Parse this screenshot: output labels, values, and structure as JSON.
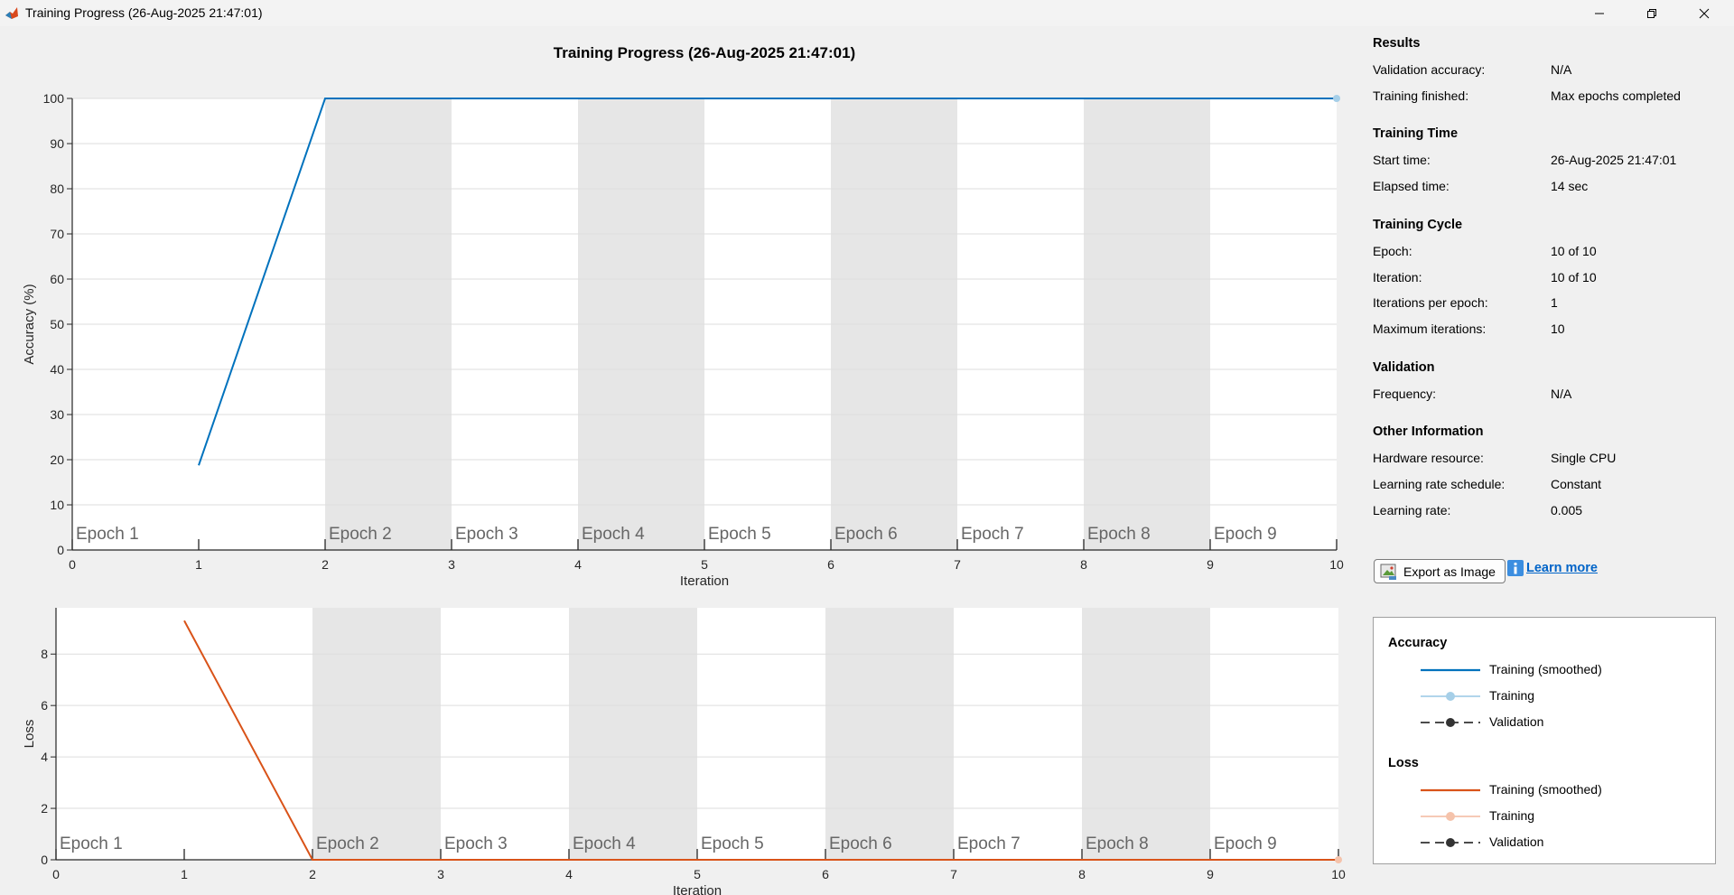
{
  "window": {
    "title": "Training Progress (26-Aug-2025 21:47:01)",
    "controls": [
      "minimize-icon",
      "restore-icon",
      "close-icon"
    ]
  },
  "figure_title": "Training Progress (26-Aug-2025 21:47:01)",
  "chart_data": [
    {
      "type": "line",
      "title": "",
      "xlabel": "Iteration",
      "ylabel": "Accuracy (%)",
      "xlim": [
        0,
        10
      ],
      "ylim": [
        0,
        100
      ],
      "xticks": [
        0,
        1,
        2,
        3,
        4,
        5,
        6,
        7,
        8,
        9,
        10
      ],
      "yticks": [
        0,
        10,
        20,
        30,
        40,
        50,
        60,
        70,
        80,
        90,
        100
      ],
      "grid": true,
      "epoch_labels": [
        "Epoch 1",
        "Epoch 2",
        "Epoch 3",
        "Epoch 4",
        "Epoch 5",
        "Epoch 6",
        "Epoch 7",
        "Epoch 8",
        "Epoch 9"
      ],
      "series": [
        {
          "name": "Training (smoothed)",
          "color": "#0072bd",
          "x": [
            1,
            2,
            3,
            4,
            5,
            6,
            7,
            8,
            9,
            10
          ],
          "y": [
            18.75,
            100,
            100,
            100,
            100,
            100,
            100,
            100,
            100,
            100
          ]
        },
        {
          "name": "Training",
          "color": "#a6cfe8",
          "x": [
            10
          ],
          "y": [
            100
          ]
        }
      ]
    },
    {
      "type": "line",
      "title": "",
      "xlabel": "Iteration",
      "ylabel": "Loss",
      "xlim": [
        0,
        10
      ],
      "ylim": [
        0,
        9.8
      ],
      "xticks": [
        0,
        1,
        2,
        3,
        4,
        5,
        6,
        7,
        8,
        9,
        10
      ],
      "yticks": [
        0,
        2,
        4,
        6,
        8
      ],
      "grid": true,
      "epoch_labels": [
        "Epoch 1",
        "Epoch 2",
        "Epoch 3",
        "Epoch 4",
        "Epoch 5",
        "Epoch 6",
        "Epoch 7",
        "Epoch 8",
        "Epoch 9"
      ],
      "series": [
        {
          "name": "Training (smoothed)",
          "color": "#d95319",
          "x": [
            1,
            2,
            3,
            4,
            5,
            6,
            7,
            8,
            9,
            10
          ],
          "y": [
            9.3,
            0,
            0,
            0,
            0,
            0,
            0,
            0,
            0,
            0
          ]
        },
        {
          "name": "Training",
          "color": "#f5c3ab",
          "x": [
            10
          ],
          "y": [
            0
          ]
        }
      ]
    }
  ],
  "info": {
    "sections": [
      {
        "title": "Results",
        "rows": [
          {
            "label": "Validation accuracy:",
            "value": "N/A"
          },
          {
            "label": "Training finished:",
            "value": "Max epochs completed"
          }
        ]
      },
      {
        "title": "Training Time",
        "rows": [
          {
            "label": "Start time:",
            "value": "26-Aug-2025 21:47:01"
          },
          {
            "label": "Elapsed time:",
            "value": "14 sec"
          }
        ]
      },
      {
        "title": "Training Cycle",
        "rows": [
          {
            "label": "Epoch:",
            "value": "10 of 10"
          },
          {
            "label": "Iteration:",
            "value": "10 of 10"
          },
          {
            "label": "Iterations per epoch:",
            "value": "1"
          },
          {
            "label": "Maximum iterations:",
            "value": "10"
          }
        ]
      },
      {
        "title": "Validation",
        "rows": [
          {
            "label": "Frequency:",
            "value": "N/A"
          }
        ]
      },
      {
        "title": "Other Information",
        "rows": [
          {
            "label": "Hardware resource:",
            "value": "Single CPU"
          },
          {
            "label": "Learning rate schedule:",
            "value": "Constant"
          },
          {
            "label": "Learning rate:",
            "value": "0.005"
          }
        ]
      }
    ]
  },
  "actions": {
    "export_label": "Export as Image",
    "learn_more_label": "Learn more"
  },
  "legend": {
    "groups": [
      {
        "title": "Accuracy",
        "items": [
          {
            "label": "Training (smoothed)",
            "style": "line",
            "color": "#0072bd"
          },
          {
            "label": "Training",
            "style": "line-marker",
            "color": "#a6cfe8"
          },
          {
            "label": "Validation",
            "style": "dashed-marker",
            "color": "#333333"
          }
        ]
      },
      {
        "title": "Loss",
        "items": [
          {
            "label": "Training (smoothed)",
            "style": "line",
            "color": "#d95319"
          },
          {
            "label": "Training",
            "style": "line-marker",
            "color": "#f5c3ab"
          },
          {
            "label": "Validation",
            "style": "dashed-marker",
            "color": "#333333"
          }
        ]
      }
    ]
  }
}
